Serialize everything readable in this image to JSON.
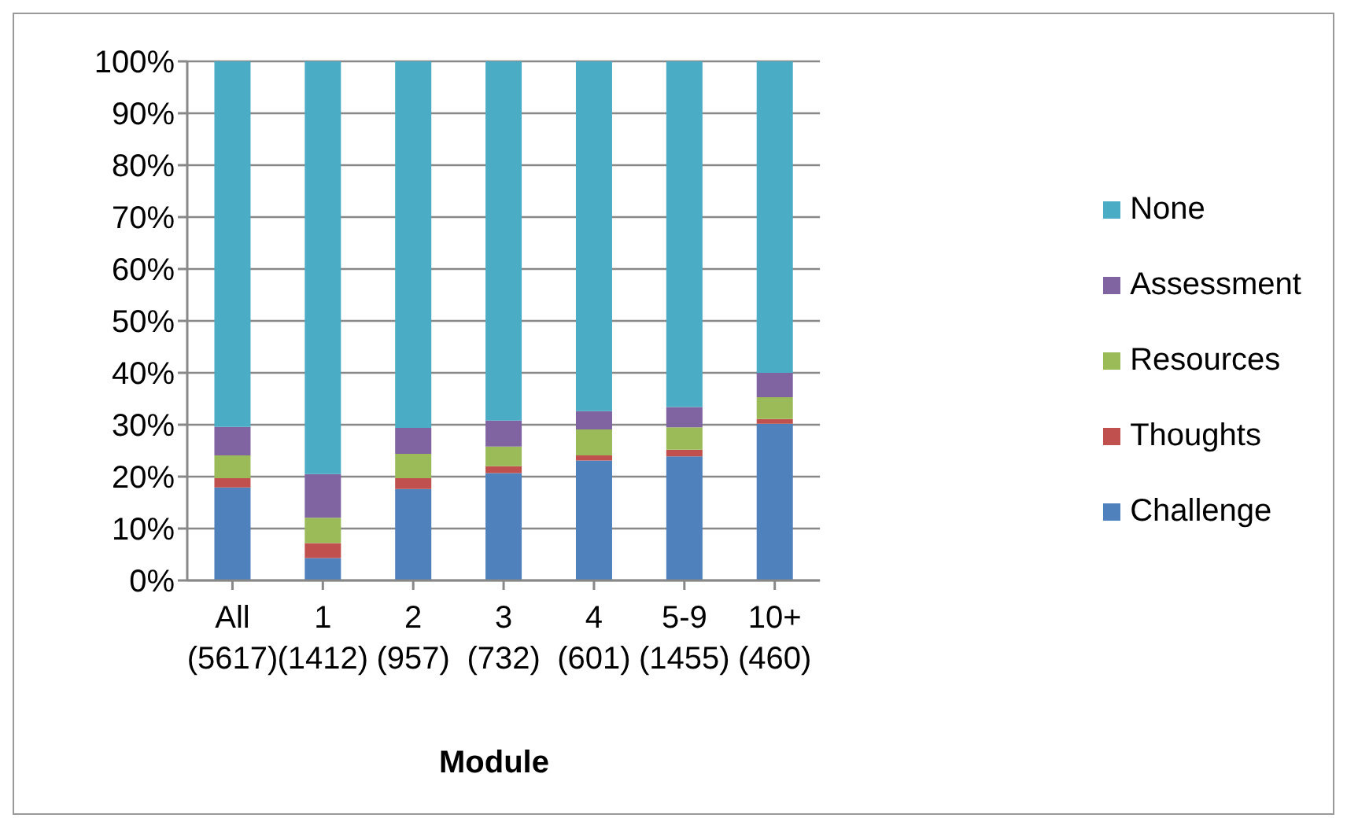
{
  "chart_data": {
    "type": "bar",
    "stacked": true,
    "xlabel": "Module",
    "categories": [
      "All\n(5617)",
      "1\n(1412)",
      "2\n(957)",
      "3\n(732)",
      "4\n(601)",
      "5-9\n(1455)",
      "10+\n(460)"
    ],
    "series": [
      {
        "name": "Challenge",
        "color": "#4f81bd",
        "values": [
          17.9,
          4.3,
          17.6,
          20.7,
          23.1,
          23.9,
          30.2
        ]
      },
      {
        "name": "Thoughts",
        "color": "#c0504d",
        "values": [
          1.8,
          2.9,
          2.1,
          1.3,
          1.0,
          1.3,
          0.9
        ]
      },
      {
        "name": "Resources",
        "color": "#9bbb59",
        "values": [
          4.4,
          4.9,
          4.7,
          3.8,
          5.0,
          4.3,
          4.2
        ]
      },
      {
        "name": "Assessment",
        "color": "#8064a2",
        "values": [
          5.5,
          8.4,
          5.0,
          5.0,
          3.5,
          3.9,
          4.7
        ]
      },
      {
        "name": "None",
        "color": "#4bacc6",
        "values": [
          70.4,
          79.5,
          70.6,
          69.2,
          67.4,
          66.6,
          60.0
        ]
      }
    ],
    "ylim": [
      0,
      100
    ],
    "yticks": [
      {
        "value": 0,
        "label": "0%"
      },
      {
        "value": 10,
        "label": "10%"
      },
      {
        "value": 20,
        "label": "20%"
      },
      {
        "value": 30,
        "label": "30%"
      },
      {
        "value": 40,
        "label": "40%"
      },
      {
        "value": 50,
        "label": "50%"
      },
      {
        "value": 60,
        "label": "60%"
      },
      {
        "value": 70,
        "label": "70%"
      },
      {
        "value": 80,
        "label": "80%"
      },
      {
        "value": 90,
        "label": "90%"
      },
      {
        "value": 100,
        "label": "100%"
      }
    ],
    "grid": "y",
    "legend": "right"
  }
}
